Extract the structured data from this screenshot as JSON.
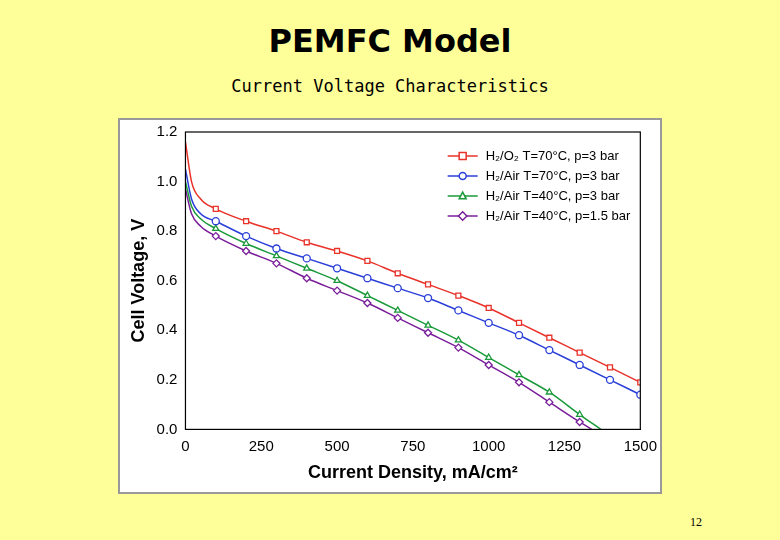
{
  "page_number": "12",
  "chart_data": {
    "type": "line",
    "title": "PEMFC Model",
    "subtitle": "Current Voltage Characteristics",
    "x_label": "Current Density, mA/cm²",
    "y_label": "Cell Voltage, V",
    "xlim": [
      0,
      1500
    ],
    "xticks": [
      0,
      250,
      500,
      750,
      1000,
      1250,
      1500
    ],
    "ylim": [
      0,
      1.2
    ],
    "yticks": [
      {
        "value": 0,
        "label": "0.0"
      },
      0.2,
      0.4,
      0.6,
      0.8,
      {
        "value": 1,
        "label": "1.0"
      },
      1.2
    ],
    "grid": false,
    "legend": "upper right",
    "series": [
      {
        "name": "H₂/O₂ T=70°C, p=3 bar",
        "color": "#e8322a",
        "marker": "square",
        "x": [
          0,
          20,
          50,
          100,
          200,
          300,
          400,
          500,
          600,
          700,
          800,
          900,
          1000,
          1100,
          1200,
          1300,
          1400,
          1500
        ],
        "values": [
          1.16,
          1.0,
          0.93,
          0.89,
          0.84,
          0.8,
          0.755,
          0.72,
          0.68,
          0.63,
          0.585,
          0.54,
          0.49,
          0.43,
          0.37,
          0.31,
          0.25,
          0.19
        ]
      },
      {
        "name": "H₂/Air T=70°C, p=3 bar",
        "color": "#2a3fd8",
        "marker": "circle",
        "x": [
          0,
          20,
          50,
          100,
          200,
          300,
          400,
          500,
          600,
          700,
          800,
          900,
          1000,
          1100,
          1200,
          1300,
          1400,
          1500
        ],
        "values": [
          1.05,
          0.93,
          0.87,
          0.84,
          0.78,
          0.73,
          0.69,
          0.65,
          0.61,
          0.57,
          0.53,
          0.48,
          0.43,
          0.38,
          0.32,
          0.26,
          0.2,
          0.14
        ]
      },
      {
        "name": "H₂/Air T=40°C, p=3 bar",
        "color": "#1a9a3a",
        "marker": "triangle",
        "x": [
          0,
          20,
          50,
          100,
          200,
          300,
          400,
          500,
          600,
          700,
          800,
          900,
          1000,
          1100,
          1200,
          1300,
          1370
        ],
        "values": [
          1.0,
          0.9,
          0.85,
          0.81,
          0.75,
          0.7,
          0.65,
          0.6,
          0.54,
          0.48,
          0.42,
          0.36,
          0.29,
          0.22,
          0.15,
          0.06,
          0.0
        ]
      },
      {
        "name": "H₂/Air T=40°C, p=1.5 bar",
        "color": "#7a1f9a",
        "marker": "diamond",
        "x": [
          0,
          20,
          50,
          100,
          200,
          300,
          400,
          500,
          600,
          700,
          800,
          900,
          1000,
          1100,
          1200,
          1300,
          1340
        ],
        "values": [
          0.97,
          0.87,
          0.82,
          0.78,
          0.72,
          0.67,
          0.61,
          0.56,
          0.51,
          0.45,
          0.39,
          0.33,
          0.26,
          0.19,
          0.11,
          0.03,
          0.0
        ]
      }
    ]
  }
}
